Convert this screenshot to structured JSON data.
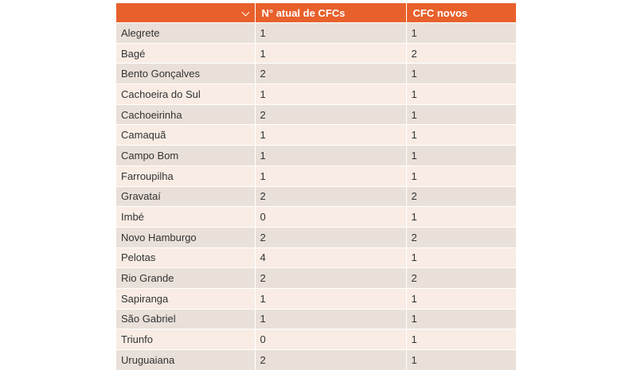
{
  "table": {
    "headers": {
      "city": "",
      "current": "N° atual de CFCs",
      "new": "CFC novos"
    },
    "header_bg": "#e8602c",
    "rows": [
      {
        "city": "Alegrete",
        "current": "1",
        "new": "1"
      },
      {
        "city": "Bagé",
        "current": "1",
        "new": "2"
      },
      {
        "city": "Bento Gonçalves",
        "current": "2",
        "new": "1"
      },
      {
        "city": "Cachoeira do Sul",
        "current": "1",
        "new": "1"
      },
      {
        "city": "Cachoeirinha",
        "current": "2",
        "new": "1"
      },
      {
        "city": "Camaquã",
        "current": "1",
        "new": "1"
      },
      {
        "city": "Campo Bom",
        "current": "1",
        "new": "1"
      },
      {
        "city": "Farroupilha",
        "current": "1",
        "new": "1"
      },
      {
        "city": "Gravataí",
        "current": "2",
        "new": "2"
      },
      {
        "city": "Imbé",
        "current": "0",
        "new": "1"
      },
      {
        "city": "Novo Hamburgo",
        "current": "2",
        "new": "2"
      },
      {
        "city": "Pelotas",
        "current": "4",
        "new": "1"
      },
      {
        "city": "Rio Grande",
        "current": "2",
        "new": "2"
      },
      {
        "city": "Sapiranga",
        "current": "1",
        "new": "1"
      },
      {
        "city": "São Gabriel",
        "current": "1",
        "new": "1"
      },
      {
        "city": "Triunfo",
        "current": "0",
        "new": "1"
      },
      {
        "city": "Uruguaiana",
        "current": "2",
        "new": "1"
      }
    ]
  }
}
